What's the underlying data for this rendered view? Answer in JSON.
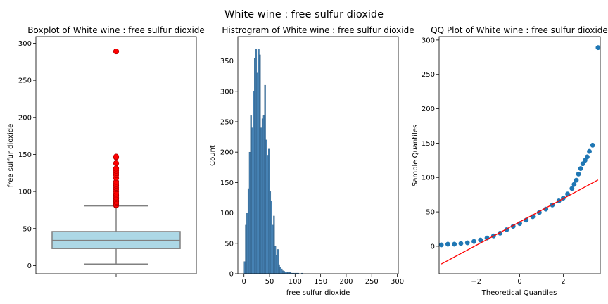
{
  "figure": {
    "suptitle": "White wine : free sulfur dioxide"
  },
  "chart_data": [
    {
      "type": "box",
      "title": "Boxplot of White wine : free sulfur dioxide",
      "xlabel": "",
      "ylabel": "free sulfur dioxide",
      "ylim": [
        -11,
        309
      ],
      "yticks": [
        0,
        50,
        100,
        150,
        200,
        250,
        300
      ],
      "box": {
        "whisker_low": 2,
        "q1": 23,
        "median": 34,
        "q3": 46,
        "whisker_high": 80.5
      },
      "outliers": [
        81,
        82,
        84,
        86,
        88,
        90,
        92,
        95,
        97,
        100,
        103,
        105,
        108,
        110,
        113,
        118,
        122,
        125,
        128,
        131,
        138,
        146,
        147,
        289
      ],
      "colors": {
        "box": "#add8e6",
        "edge": "#808080",
        "outlier": "#ff0000"
      }
    },
    {
      "type": "bar",
      "title": "Histrogram of White wine : free sulfur dioxide",
      "xlabel": "free sulfur dioxide",
      "ylabel": "Count",
      "xlim": [
        -12,
        302
      ],
      "ylim": [
        0,
        390
      ],
      "xticks": [
        0,
        50,
        100,
        150,
        200,
        250,
        300
      ],
      "yticks": [
        0,
        50,
        100,
        150,
        200,
        250,
        300,
        350
      ],
      "bin_width": 2.5,
      "bin_start": 0,
      "values": [
        20,
        80,
        100,
        140,
        200,
        260,
        240,
        300,
        355,
        370,
        330,
        370,
        360,
        240,
        255,
        260,
        310,
        220,
        195,
        205,
        135,
        120,
        80,
        95,
        45,
        30,
        40,
        15,
        10,
        8,
        5,
        4,
        3,
        3,
        2,
        2,
        2,
        1,
        1,
        1,
        1,
        1,
        1,
        0,
        0,
        1
      ],
      "colors": {
        "bar": "#4682b4",
        "edge": "#2c5a80"
      }
    },
    {
      "type": "scatter",
      "title": "QQ Plot of White wine : free sulfur dioxide",
      "xlabel": "Theoretical Quantiles",
      "ylabel": "Sample Quantiles",
      "xlim": [
        -3.7,
        3.7
      ],
      "ylim": [
        -40,
        305
      ],
      "xticks": [
        -2,
        0,
        2
      ],
      "yticks": [
        0,
        50,
        100,
        150,
        200,
        250,
        300
      ],
      "points": [
        [
          -3.6,
          2
        ],
        [
          -3.3,
          3
        ],
        [
          -3.0,
          3
        ],
        [
          -2.7,
          4
        ],
        [
          -2.4,
          5
        ],
        [
          -2.1,
          7
        ],
        [
          -1.8,
          9
        ],
        [
          -1.5,
          12
        ],
        [
          -1.2,
          15
        ],
        [
          -0.9,
          19
        ],
        [
          -0.6,
          24
        ],
        [
          -0.3,
          29
        ],
        [
          0,
          33
        ],
        [
          0.3,
          38
        ],
        [
          0.6,
          43
        ],
        [
          0.9,
          49
        ],
        [
          1.2,
          54
        ],
        [
          1.5,
          60
        ],
        [
          1.8,
          66
        ],
        [
          2.0,
          70
        ],
        [
          2.2,
          76
        ],
        [
          2.4,
          84
        ],
        [
          2.5,
          90
        ],
        [
          2.6,
          96
        ],
        [
          2.7,
          105
        ],
        [
          2.8,
          113
        ],
        [
          2.9,
          120
        ],
        [
          3.0,
          125
        ],
        [
          3.1,
          130
        ],
        [
          3.2,
          138
        ],
        [
          3.35,
          147
        ],
        [
          3.6,
          289
        ]
      ],
      "fit_line": {
        "slope": 17.0,
        "intercept": 35.3
      },
      "colors": {
        "point": "#1f77b4",
        "line": "#ff0000"
      }
    }
  ]
}
